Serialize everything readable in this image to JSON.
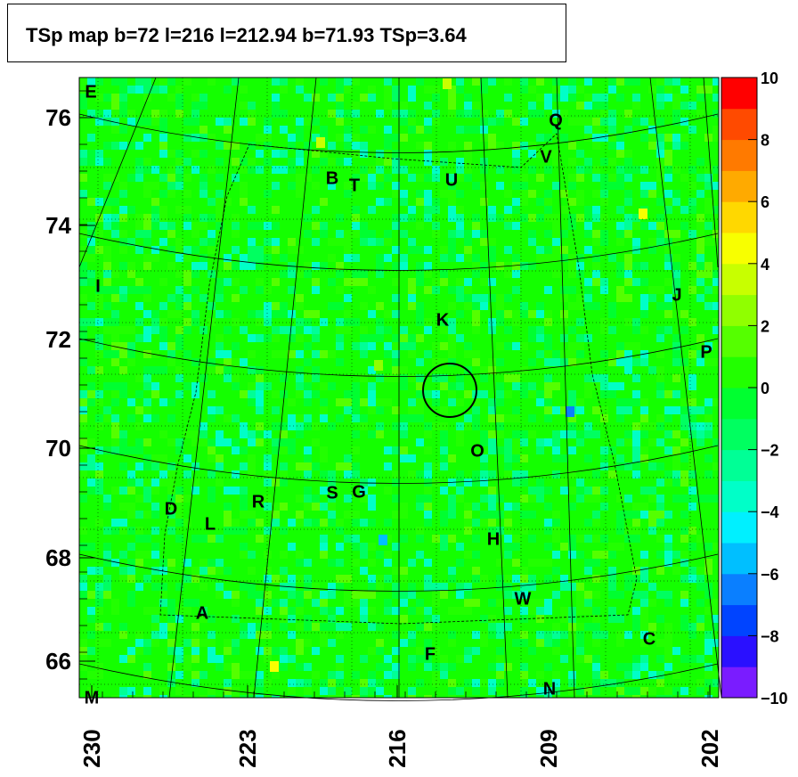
{
  "title": "TSp map b=72 l=216 l=212.94 b=71.93 TSp=3.64",
  "chart_data": {
    "type": "heatmap",
    "title": "TSp map b=72 l=216 l=212.94 b=71.93 TSp=3.64",
    "xlabel": "",
    "ylabel": "",
    "x_ticks": [
      "230",
      "223",
      "216",
      "209",
      "202"
    ],
    "y_ticks": [
      "76",
      "74",
      "72",
      "70",
      "68",
      "66"
    ],
    "colorbar_ticks": [
      "10",
      "8",
      "6",
      "4",
      "2",
      "0",
      "−2",
      "−4",
      "−6",
      "−8",
      "−10"
    ],
    "colorbar_range": [
      -10,
      10
    ],
    "colors": [
      "#7a1cff",
      "#2a10ff",
      "#0044ff",
      "#0a7fff",
      "#00bfff",
      "#00f0ff",
      "#00ffc8",
      "#00ff96",
      "#00ff60",
      "#00ff30",
      "#22ff00",
      "#55ff00",
      "#90ff00",
      "#c8ff00",
      "#f8ff00",
      "#ffd800",
      "#ffaa00",
      "#ff7a00",
      "#ff4a00",
      "#ff0000"
    ],
    "source_labels": [
      "E",
      "Q",
      "V",
      "B",
      "T",
      "U",
      "I",
      "J",
      "K",
      "P",
      "O",
      "D",
      "L",
      "R",
      "S",
      "G",
      "H",
      "W",
      "A",
      "C",
      "F",
      "M",
      "N"
    ],
    "marker": {
      "l": 212.94,
      "b": 71.93
    }
  }
}
